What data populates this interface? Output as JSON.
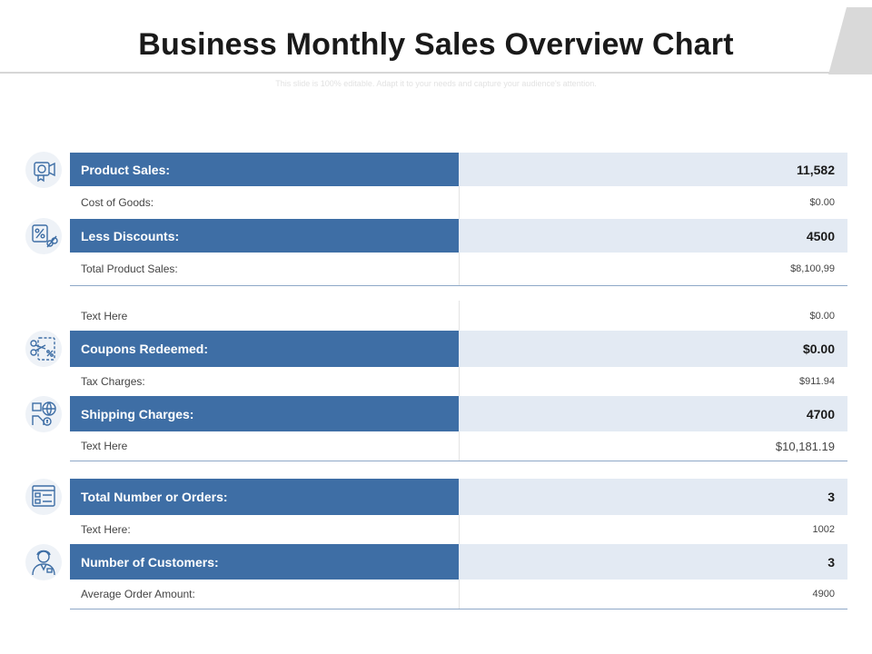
{
  "header": {
    "title": "Business Monthly Sales Overview Chart",
    "subtitle": "This slide is 100% editable. Adapt it to your needs and capture your audience's attention."
  },
  "colors": {
    "accent": "#3e6ea5",
    "value_bg": "#e3eaf3",
    "icon": "#3e6ea5"
  },
  "groups": [
    {
      "rows": [
        {
          "label": "Product Sales:",
          "value": "11,582",
          "highlight": true,
          "icon": "megaphone-icon"
        },
        {
          "label": "Cost of Goods:",
          "value": "$0.00",
          "highlight": false
        },
        {
          "label": "Less Discounts:",
          "value": "4500",
          "highlight": true,
          "icon": "discount-icon"
        },
        {
          "label": "Total Product Sales:",
          "value": "$8,100,99",
          "highlight": false
        }
      ]
    },
    {
      "rows": [
        {
          "label": "Text Here",
          "value": "$0.00",
          "highlight": false
        },
        {
          "label": "Coupons Redeemed:",
          "value": "$0.00",
          "highlight": true,
          "icon": "coupon-scissors-icon"
        },
        {
          "label": "Tax Charges:",
          "value": "$911.94",
          "highlight": false
        },
        {
          "label": "Shipping Charges:",
          "value": "4700",
          "highlight": true,
          "icon": "global-shipping-icon"
        },
        {
          "label": "Text Here",
          "value": "$10,181.19",
          "highlight": false
        }
      ]
    },
    {
      "rows": [
        {
          "label": "Total Number or Orders:",
          "value": "3",
          "highlight": true,
          "icon": "order-list-icon"
        },
        {
          "label": "Text Here:",
          "value": "1002",
          "highlight": false
        },
        {
          "label": "Number of Customers:",
          "value": "3",
          "highlight": true,
          "icon": "customer-icon"
        },
        {
          "label": "Average Order Amount:",
          "value": "4900",
          "highlight": false
        }
      ]
    }
  ]
}
